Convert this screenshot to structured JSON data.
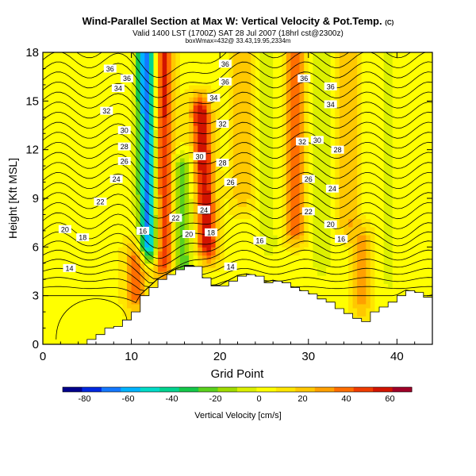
{
  "header": {
    "title": "Wind-Parallel Section at Max W: Vertical Velocity & Pot.Temp.",
    "copyright": "(C)",
    "valid_line": "Valid 1400 LST (1700Z) SAT 28 Jul 2007 (18hrl cst@2300z)",
    "box_line": "boxWmax=432@ 33.43,19.95,2334m"
  },
  "chart_data": {
    "type": "heatmap",
    "title": "Wind-Parallel Section at Max W: Vertical Velocity & Pot.Temp.",
    "xlabel": "Grid Point",
    "ylabel": "Height [Kft MSL]",
    "xlim": [
      0,
      44
    ],
    "ylim": [
      0,
      18
    ],
    "x_ticks": [
      0,
      10,
      20,
      30,
      40
    ],
    "y_ticks": [
      0,
      3,
      6,
      9,
      12,
      15,
      18
    ],
    "colorbar": {
      "label": "Vertical Velocity [cm/s]",
      "range": [
        -90,
        70
      ],
      "ticks": [
        -80,
        -60,
        -40,
        -20,
        0,
        20,
        40,
        60
      ],
      "colors": [
        "#00008c",
        "#0028e0",
        "#1478ff",
        "#00b4ff",
        "#00dcc8",
        "#00d490",
        "#14c84a",
        "#5ad21e",
        "#a0dc00",
        "#dcf000",
        "#ffff00",
        "#ffe600",
        "#ffc800",
        "#ffa000",
        "#ff6e00",
        "#f03c00",
        "#d21400",
        "#a00028"
      ]
    },
    "terrain_kft": [
      [
        0,
        0
      ],
      [
        5,
        0.3
      ],
      [
        6,
        0.6
      ],
      [
        7,
        1.0
      ],
      [
        8,
        1.1
      ],
      [
        9,
        1.5
      ],
      [
        10,
        2.0
      ],
      [
        11,
        3.0
      ],
      [
        12,
        3.5
      ],
      [
        13,
        4.0
      ],
      [
        14,
        4.3
      ],
      [
        15,
        4.6
      ],
      [
        16,
        4.8
      ],
      [
        17,
        4.8
      ],
      [
        18,
        4.1
      ],
      [
        19,
        3.6
      ],
      [
        20,
        3.6
      ],
      [
        21,
        3.9
      ],
      [
        22,
        4.2
      ],
      [
        23,
        4.3
      ],
      [
        24,
        4.2
      ],
      [
        25,
        3.8
      ],
      [
        26,
        3.9
      ],
      [
        27,
        3.8
      ],
      [
        28,
        3.5
      ],
      [
        29,
        3.3
      ],
      [
        30,
        3.1
      ],
      [
        31,
        2.8
      ],
      [
        32,
        2.6
      ],
      [
        33,
        2.2
      ],
      [
        34,
        1.9
      ],
      [
        35,
        1.6
      ],
      [
        36,
        1.4
      ],
      [
        37,
        2.0
      ],
      [
        38,
        2.3
      ],
      [
        39,
        2.6
      ],
      [
        40,
        3.0
      ],
      [
        41,
        3.3
      ],
      [
        42,
        3.2
      ],
      [
        43,
        2.9
      ],
      [
        44,
        3.0
      ]
    ],
    "vertical_velocity_features_cm_s": [
      {
        "kind": "updraft",
        "x": 13.6,
        "z_bottom": 5.0,
        "z_top": 18.0,
        "peak": 50,
        "tilt_per_kft": 0.0
      },
      {
        "kind": "updraft",
        "x": 18.6,
        "z_bottom": 6.0,
        "z_top": 14.5,
        "peak": 55,
        "tilt_per_kft": -0.09
      },
      {
        "kind": "updraft",
        "x": 22.5,
        "z_bottom": 9.0,
        "z_top": 18.0,
        "peak": 18,
        "tilt_per_kft": 0.0
      },
      {
        "kind": "updraft",
        "x": 28.5,
        "z_bottom": 7.0,
        "z_top": 18.0,
        "peak": 35,
        "tilt_per_kft": 0.0
      },
      {
        "kind": "updraft",
        "x": 34.5,
        "z_bottom": 7.5,
        "z_top": 18.0,
        "peak": 20,
        "tilt_per_kft": 0.0
      },
      {
        "kind": "updraft",
        "x": 10.5,
        "z_bottom": 3.0,
        "z_top": 5.5,
        "peak": 35,
        "tilt_per_kft": 0.0
      },
      {
        "kind": "updraft",
        "x": 36.0,
        "z_bottom": 2.5,
        "z_top": 6.5,
        "peak": 22,
        "tilt_per_kft": 0.0
      },
      {
        "kind": "downdraft",
        "x": 12.0,
        "z_bottom": 6.0,
        "z_top": 18.0,
        "peak": -75,
        "tilt_per_kft": -0.03
      },
      {
        "kind": "downdraft",
        "x": 15.8,
        "z_bottom": 4.5,
        "z_top": 11.0,
        "peak": -30,
        "tilt_per_kft": 0.0
      },
      {
        "kind": "downdraft",
        "x": 25.5,
        "z_bottom": 6.0,
        "z_top": 18.0,
        "peak": -12,
        "tilt_per_kft": 0.0
      },
      {
        "kind": "downdraft",
        "x": 31.5,
        "z_bottom": 5.0,
        "z_top": 18.0,
        "peak": -15,
        "tilt_per_kft": 0.0
      },
      {
        "kind": "downdraft",
        "x": 39.0,
        "z_bottom": 4.0,
        "z_top": 18.0,
        "peak": -10,
        "tilt_per_kft": 0.0
      }
    ],
    "pot_temp_contours_C": {
      "labels": [
        {
          "value": "36",
          "x": 7.6,
          "y": 17.0
        },
        {
          "value": "36",
          "x": 9.5,
          "y": 16.4
        },
        {
          "value": "34",
          "x": 8.5,
          "y": 15.8
        },
        {
          "value": "32",
          "x": 7.2,
          "y": 14.4
        },
        {
          "value": "30",
          "x": 9.2,
          "y": 13.2
        },
        {
          "value": "28",
          "x": 9.2,
          "y": 12.2
        },
        {
          "value": "26",
          "x": 9.2,
          "y": 11.3
        },
        {
          "value": "24",
          "x": 8.3,
          "y": 10.2
        },
        {
          "value": "22",
          "x": 6.5,
          "y": 8.8
        },
        {
          "value": "20",
          "x": 2.5,
          "y": 7.1
        },
        {
          "value": "18",
          "x": 4.5,
          "y": 6.6
        },
        {
          "value": "16",
          "x": 11.3,
          "y": 7.0
        },
        {
          "value": "14",
          "x": 3.0,
          "y": 4.7
        },
        {
          "value": "36",
          "x": 20.6,
          "y": 17.3
        },
        {
          "value": "36",
          "x": 20.6,
          "y": 16.2
        },
        {
          "value": "34",
          "x": 19.3,
          "y": 15.2
        },
        {
          "value": "32",
          "x": 20.3,
          "y": 13.6
        },
        {
          "value": "30",
          "x": 17.7,
          "y": 11.6
        },
        {
          "value": "28",
          "x": 20.3,
          "y": 11.2
        },
        {
          "value": "26",
          "x": 21.2,
          "y": 10.0
        },
        {
          "value": "24",
          "x": 18.2,
          "y": 8.3
        },
        {
          "value": "22",
          "x": 15.0,
          "y": 7.8
        },
        {
          "value": "20",
          "x": 16.5,
          "y": 6.8
        },
        {
          "value": "18",
          "x": 19.0,
          "y": 6.9
        },
        {
          "value": "16",
          "x": 24.5,
          "y": 6.4
        },
        {
          "value": "14",
          "x": 21.2,
          "y": 4.8
        },
        {
          "value": "36",
          "x": 29.5,
          "y": 16.4
        },
        {
          "value": "36",
          "x": 32.5,
          "y": 15.9
        },
        {
          "value": "34",
          "x": 32.5,
          "y": 14.8
        },
        {
          "value": "32",
          "x": 29.3,
          "y": 12.5
        },
        {
          "value": "30",
          "x": 31.0,
          "y": 12.6
        },
        {
          "value": "28",
          "x": 33.3,
          "y": 12.0
        },
        {
          "value": "26",
          "x": 30.0,
          "y": 10.2
        },
        {
          "value": "24",
          "x": 32.7,
          "y": 9.6
        },
        {
          "value": "22",
          "x": 30.0,
          "y": 8.2
        },
        {
          "value": "20",
          "x": 32.5,
          "y": 7.4
        },
        {
          "value": "16",
          "x": 33.7,
          "y": 6.5
        }
      ]
    }
  }
}
